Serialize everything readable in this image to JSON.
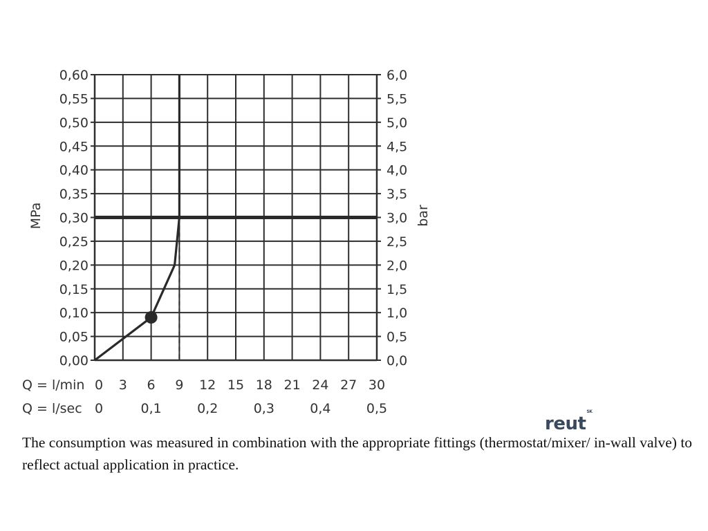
{
  "chart_data": {
    "type": "line",
    "ylabel_left": "MPa",
    "ylabel_right": "bar",
    "y_ticks_left": [
      "0,00",
      "0,05",
      "0,10",
      "0,15",
      "0,20",
      "0,25",
      "0,30",
      "0,35",
      "0,40",
      "0,45",
      "0,50",
      "0,55",
      "0,60"
    ],
    "y_ticks_right": [
      "0,0",
      "0,5",
      "1,0",
      "1,5",
      "2,0",
      "2,5",
      "3,0",
      "3,5",
      "4,0",
      "4,5",
      "5,0",
      "5,5",
      "6,0"
    ],
    "x_row1_label": "Q = l/min",
    "x_row1_ticks": [
      "0",
      "3",
      "6",
      "9",
      "12",
      "15",
      "18",
      "21",
      "24",
      "27",
      "30"
    ],
    "x_row2_label": "Q = l/sec",
    "x_row2_ticks": [
      "0",
      "0,1",
      "0,2",
      "0,3",
      "0,4",
      "0,5"
    ],
    "xlim": [
      0,
      30
    ],
    "ylim": [
      0,
      0.6
    ],
    "grid": true,
    "series": [
      {
        "values": [
          [
            0,
            0
          ],
          [
            6,
            0.09
          ],
          [
            8.5,
            0.2
          ],
          [
            9,
            0.3
          ],
          [
            9,
            0.6
          ]
        ]
      }
    ],
    "marker_point": [
      6,
      0.09
    ],
    "reference_line_y": 0.3,
    "dashed_line_x": 9
  },
  "caption": "The consumption was measured in combination with the appropriate fittings (thermostat/mixer/ in-wall valve) to reflect actual application in practice.",
  "logo_text": "reut",
  "logo_suffix": "SK"
}
